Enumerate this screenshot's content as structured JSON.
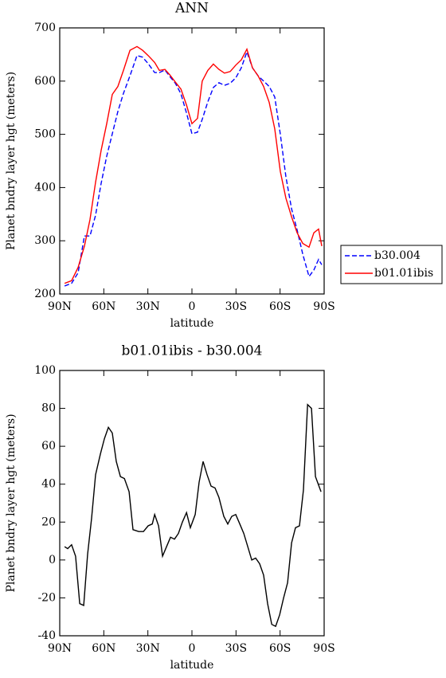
{
  "chart_data": [
    {
      "type": "line",
      "title": "ANN",
      "xlabel": "latitude",
      "ylabel": "Planet bndry layer hgt (meters)",
      "x": [
        86.7,
        81.9,
        77.5,
        73.2,
        69.4,
        65.6,
        61.8,
        58.0,
        54.2,
        50.4,
        46.6,
        42.2,
        37.4,
        33.6,
        29.8,
        25.4,
        22.2,
        18.4,
        15.1,
        11.3,
        7.5,
        3.7,
        0,
        -3.8,
        -7.0,
        -10.8,
        -14.6,
        -18.4,
        -22.2,
        -26.0,
        -29.8,
        -33.6,
        -37.4,
        -41.2,
        -45.0,
        -48.8,
        -52.6,
        -56.4,
        -60.2,
        -64.0,
        -67.8,
        -71.6,
        -75.4,
        -79.7,
        -83.0,
        -86.2,
        -88.4
      ],
      "series": [
        {
          "name": "b30.004",
          "color": "#0000ff",
          "line_style": "dashed",
          "values": [
            215,
            220,
            240,
            309,
            309,
            348,
            408,
            459,
            501,
            543,
            577,
            610,
            648,
            645,
            633,
            616,
            616,
            621,
            609,
            596,
            576,
            540,
            501,
            504,
            528,
            561,
            588,
            597,
            592,
            596,
            606,
            625,
            655,
            625,
            610,
            600,
            590,
            570,
            500,
            420,
            360,
            320,
            275,
            233,
            245,
            265,
            255
          ]
        },
        {
          "name": "b01.01ibis",
          "color": "#ff0000",
          "line_style": "solid",
          "values": [
            220,
            225,
            250,
            290,
            340,
            410,
            470,
            520,
            575,
            590,
            620,
            658,
            665,
            658,
            648,
            635,
            620,
            622,
            612,
            598,
            585,
            555,
            520,
            530,
            600,
            620,
            632,
            622,
            615,
            618,
            630,
            640,
            660,
            625,
            610,
            590,
            560,
            510,
            430,
            380,
            345,
            315,
            295,
            288,
            315,
            322,
            290
          ]
        }
      ],
      "xlim": [
        90,
        -90
      ],
      "xticks": [
        {
          "value": 90,
          "label": "90N"
        },
        {
          "value": 60,
          "label": "60N"
        },
        {
          "value": 30,
          "label": "30N"
        },
        0,
        {
          "value": -30,
          "label": "30S"
        },
        {
          "value": -60,
          "label": "60S"
        },
        {
          "value": -90,
          "label": "90S"
        }
      ],
      "ylim": [
        200,
        700
      ],
      "yticks": [
        200,
        300,
        400,
        500,
        600,
        700
      ],
      "legend": "right"
    },
    {
      "type": "line",
      "title": "b01.01ibis - b30.004",
      "xlabel": "latitude",
      "ylabel": "Planet bndry layer hgt (meters)",
      "x": [
        86.7,
        84.6,
        81.9,
        79.2,
        76.4,
        73.7,
        71.0,
        68.3,
        65.6,
        62.3,
        59.6,
        56.9,
        54.2,
        51.5,
        48.7,
        46.0,
        42.8,
        40.1,
        36.2,
        33.0,
        29.8,
        27.0,
        25.4,
        22.7,
        20.0,
        17.3,
        14.6,
        11.9,
        9.2,
        6.5,
        3.7,
        1.1,
        -2.2,
        -4.9,
        -7.6,
        -10.3,
        -13.0,
        -15.7,
        -18.4,
        -21.7,
        -24.4,
        -27.1,
        -29.8,
        -32.6,
        -35.3,
        -38.0,
        -40.7,
        -43.4,
        -46.1,
        -48.8,
        -51.5,
        -54.3,
        -57.0,
        -59.7,
        -62.4,
        -65.1,
        -67.8,
        -70.5,
        -73.2,
        -75.9,
        -78.7,
        -81.4,
        -84.1,
        -87.9
      ],
      "values": [
        7,
        6,
        8,
        2,
        -23,
        -24,
        3,
        22,
        45,
        56,
        64,
        70,
        67,
        52,
        44,
        43,
        36,
        16,
        15,
        15,
        18,
        19,
        24,
        18,
        2,
        7,
        12,
        11,
        14,
        20,
        25,
        17,
        24,
        41,
        52,
        45,
        39,
        38,
        33,
        23,
        19,
        23,
        24,
        19,
        14,
        7,
        0,
        1,
        -2,
        -8,
        -23,
        -34,
        -35,
        -29,
        -20,
        -12,
        9,
        17,
        18,
        37,
        82,
        80,
        44,
        36
      ],
      "color": "#000000",
      "xlim": [
        90,
        -90
      ],
      "xticks": [
        {
          "value": 90,
          "label": "90N"
        },
        {
          "value": 60,
          "label": "60N"
        },
        {
          "value": 30,
          "label": "30N"
        },
        0,
        {
          "value": -30,
          "label": "30S"
        },
        {
          "value": -60,
          "label": "60S"
        },
        {
          "value": -90,
          "label": "90S"
        }
      ],
      "ylim": [
        -40,
        100
      ],
      "yticks": [
        -40,
        -20,
        0,
        20,
        40,
        60,
        80,
        100
      ]
    }
  ]
}
